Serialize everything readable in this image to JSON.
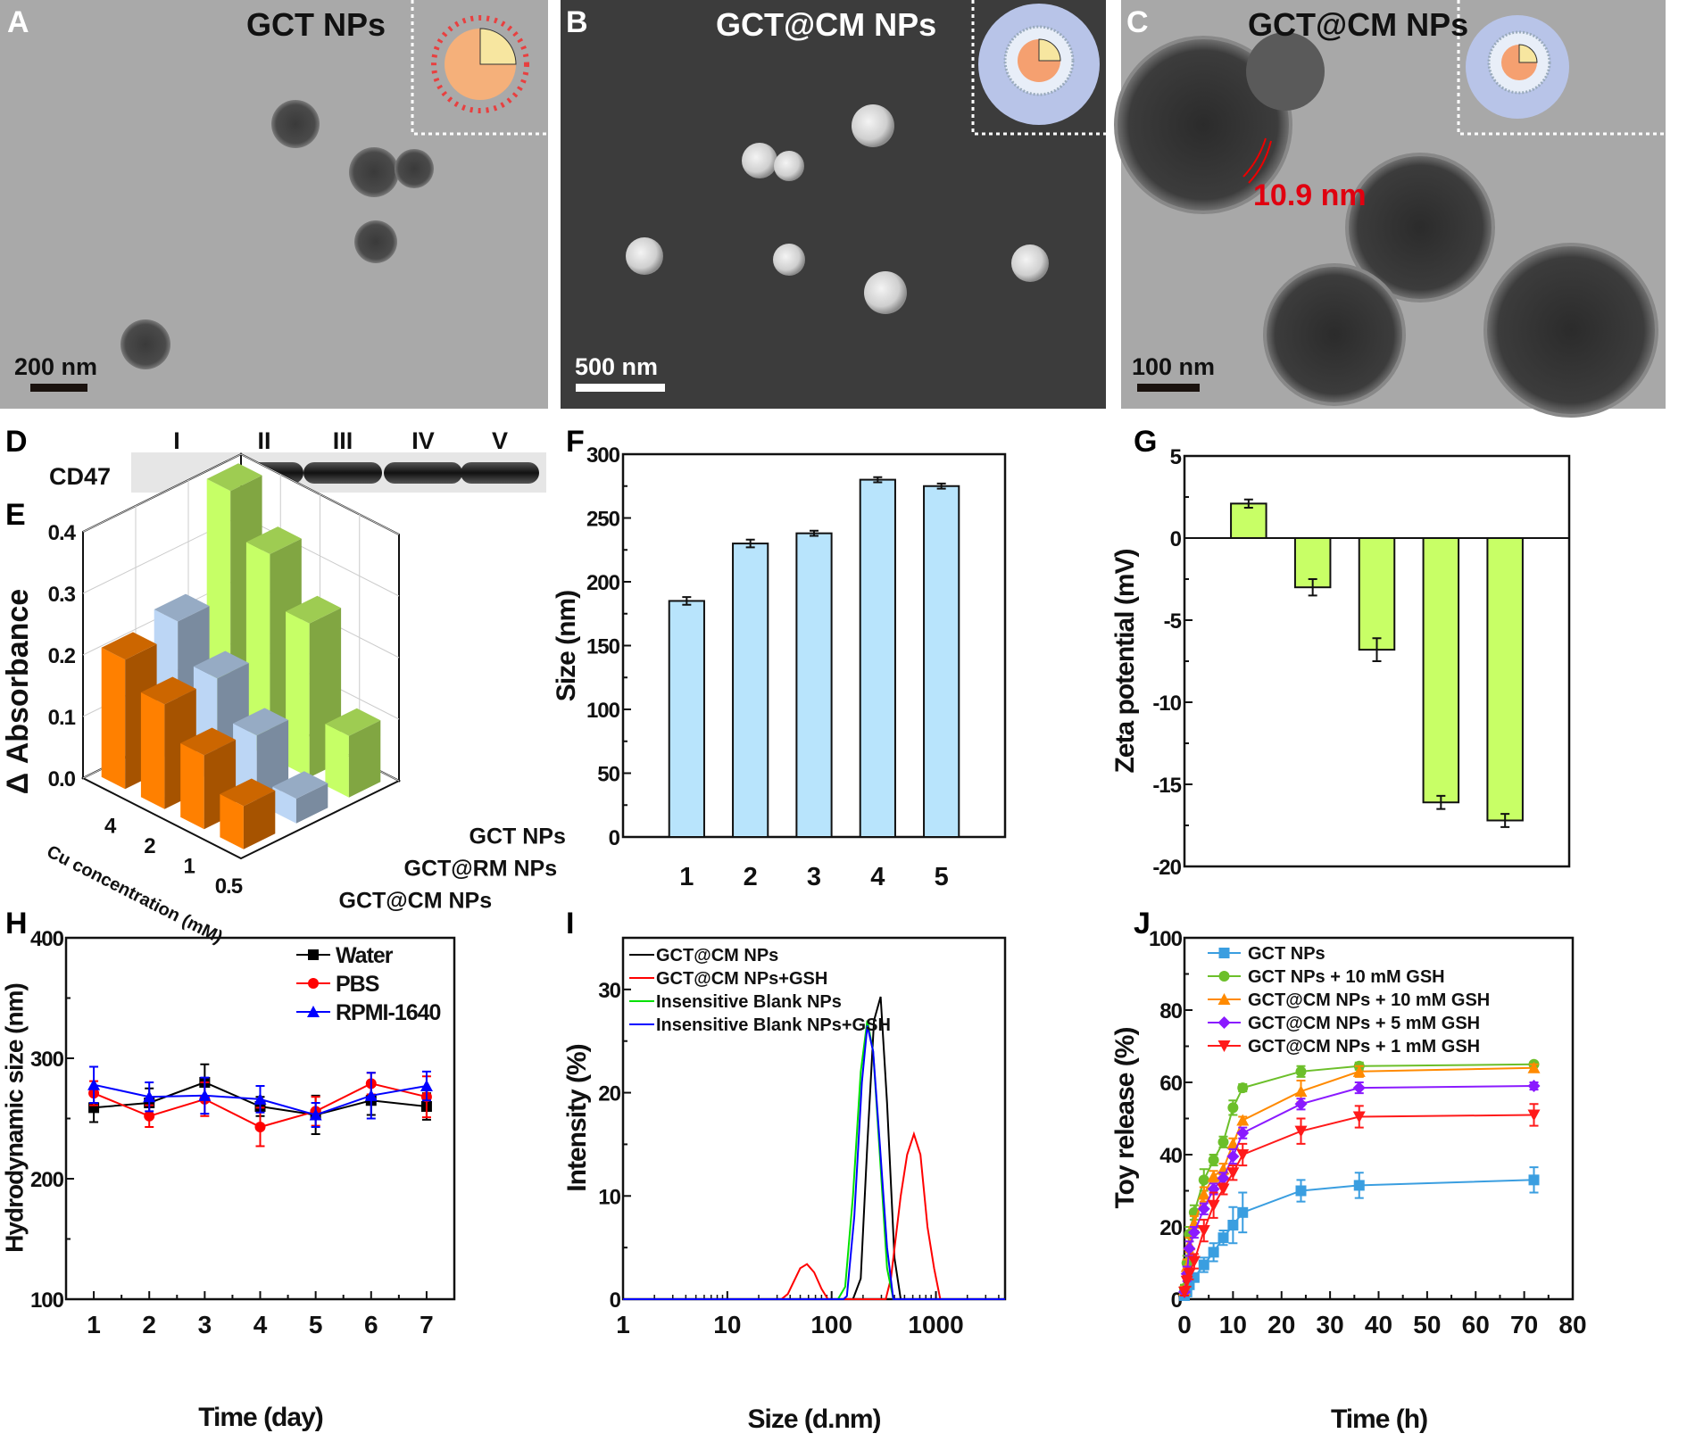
{
  "panels": {
    "A": {
      "label": "A",
      "title": "GCT NPs",
      "scale_bar": "200 nm"
    },
    "B": {
      "label": "B",
      "title": "GCT@CM NPs",
      "scale_bar": "500 nm"
    },
    "C": {
      "label": "C",
      "title": "GCT@CM NPs",
      "scale_bar": "100 nm",
      "annotation": "10.9 nm"
    },
    "D": {
      "label": "D",
      "row_label": "CD47",
      "lanes": [
        "I",
        "II",
        "III",
        "IV",
        "V"
      ],
      "band_present": [
        false,
        true,
        true,
        true,
        true
      ]
    },
    "E": {
      "label": "E"
    },
    "F": {
      "label": "F"
    },
    "G": {
      "label": "G"
    },
    "H": {
      "label": "H"
    },
    "I": {
      "label": "I"
    },
    "J": {
      "label": "J"
    }
  },
  "colors": {
    "orange": "#ff8000",
    "light_blue": "#bcd6f5",
    "lime": "#c6ff66",
    "bar_blue": "#b8e4fc",
    "bar_green": "#c8ff66"
  },
  "chart_data": [
    {
      "panel": "E",
      "type": "bar3d",
      "ylabel": "Δ Absorbance",
      "xlabel": "Cu concentration (mM)",
      "categories": [
        "4",
        "2",
        "1",
        "0.5"
      ],
      "yticks": [
        "0.0",
        "0.1",
        "0.2",
        "0.3",
        "0.4"
      ],
      "ylim": [
        0,
        0.4
      ],
      "series": [
        {
          "name": "GCT@CM NPs",
          "color": "#ff8000",
          "values": [
            0.21,
            0.17,
            0.12,
            0.07
          ]
        },
        {
          "name": "GCT@RM NPs",
          "color": "#bcd6f5",
          "values": [
            0.23,
            0.17,
            0.11,
            0.04
          ]
        },
        {
          "name": "GCT NPs",
          "color": "#c6ff66",
          "values": [
            0.4,
            0.33,
            0.25,
            0.1
          ]
        }
      ]
    },
    {
      "panel": "F",
      "type": "bar",
      "ylabel": "Size (nm)",
      "xlabel": "",
      "categories": [
        "1",
        "2",
        "3",
        "4",
        "5"
      ],
      "values": [
        185,
        230,
        238,
        280,
        275
      ],
      "errors": [
        3,
        3,
        2,
        2,
        2
      ],
      "ylim": [
        0,
        300
      ],
      "yticks": [
        0,
        50,
        100,
        150,
        200,
        250,
        300
      ],
      "color": "#b8e4fc"
    },
    {
      "panel": "G",
      "type": "bar",
      "ylabel": "Zeta potential (mV)",
      "xlabel": "",
      "categories": [
        "",
        "",
        "",
        "",
        ""
      ],
      "values": [
        2.1,
        -3.0,
        -6.8,
        -16.1,
        -17.2
      ],
      "errors": [
        0.25,
        0.5,
        0.7,
        0.4,
        0.4
      ],
      "ylim": [
        -20,
        5
      ],
      "yticks": [
        5,
        0,
        -5,
        -10,
        -15,
        -20
      ],
      "color": "#c8ff66"
    },
    {
      "panel": "H",
      "type": "line",
      "ylabel": "Hydrodynamic size (nm)",
      "xlabel": "Time (day)",
      "x": [
        1,
        2,
        3,
        4,
        5,
        6,
        7
      ],
      "xlim": [
        0.5,
        7.5
      ],
      "ylim": [
        100,
        400
      ],
      "xticks": [
        1,
        2,
        3,
        4,
        5,
        6,
        7
      ],
      "yticks": [
        100,
        200,
        300,
        400
      ],
      "legend": "top-right",
      "series": [
        {
          "name": "Water",
          "color": "#000000",
          "marker": "square",
          "values": [
            259,
            263,
            280,
            260,
            253,
            265,
            260
          ],
          "errors": [
            12,
            12,
            15,
            8,
            16,
            12,
            11
          ]
        },
        {
          "name": "PBS",
          "color": "#ff0000",
          "marker": "circle",
          "values": [
            271,
            252,
            266,
            243,
            256,
            279,
            268
          ],
          "errors": [
            10,
            9,
            14,
            16,
            12,
            9,
            17
          ]
        },
        {
          "name": "RPMI-1640",
          "color": "#0000ff",
          "marker": "triangle",
          "values": [
            278,
            268,
            269,
            266,
            253,
            269,
            277
          ],
          "errors": [
            15,
            12,
            15,
            11,
            10,
            19,
            12
          ]
        }
      ]
    },
    {
      "panel": "I",
      "type": "line",
      "ylabel": "Intensity (%)",
      "xlabel": "Size (d.nm)",
      "xscale": "log",
      "xlim": [
        1,
        4600
      ],
      "ylim": [
        0,
        35
      ],
      "xticks": [
        1,
        10,
        100,
        1000
      ],
      "yticks": [
        0,
        10,
        20,
        30
      ],
      "legend": "top-left",
      "series": [
        {
          "name": "GCT@CM NPs",
          "color": "#000000",
          "points": [
            [
              1,
              0
            ],
            [
              160,
              0
            ],
            [
              190,
              2
            ],
            [
              220,
              15
            ],
            [
              255,
              27
            ],
            [
              295,
              29.3
            ],
            [
              340,
              19
            ],
            [
              400,
              4
            ],
            [
              460,
              0
            ],
            [
              4600,
              0
            ]
          ]
        },
        {
          "name": "GCT@CM NPs+GSH",
          "color": "#ff0000",
          "points": [
            [
              1,
              0
            ],
            [
              33,
              0
            ],
            [
              38,
              0.5
            ],
            [
              50,
              3
            ],
            [
              58,
              3.4
            ],
            [
              68,
              2.6
            ],
            [
              80,
              1
            ],
            [
              92,
              0
            ],
            [
              330,
              0
            ],
            [
              370,
              2
            ],
            [
              460,
              10
            ],
            [
              530,
              14
            ],
            [
              615,
              16
            ],
            [
              710,
              14
            ],
            [
              830,
              7
            ],
            [
              960,
              3
            ],
            [
              1100,
              0
            ],
            [
              4600,
              0
            ]
          ]
        },
        {
          "name": "Insensitive Blank NPs",
          "color": "#00e000",
          "points": [
            [
              1,
              0
            ],
            [
              115,
              0
            ],
            [
              135,
              1.2
            ],
            [
              160,
              10
            ],
            [
              190,
              22
            ],
            [
              220,
              27
            ],
            [
              250,
              24
            ],
            [
              290,
              14
            ],
            [
              340,
              3
            ],
            [
              390,
              0
            ],
            [
              4600,
              0
            ]
          ]
        },
        {
          "name": "Insensitive Blank NPs+GSH",
          "color": "#0000ff",
          "points": [
            [
              1,
              0
            ],
            [
              130,
              0
            ],
            [
              140,
              0.3
            ],
            [
              165,
              8
            ],
            [
              195,
              21
            ],
            [
              220,
              26.5
            ],
            [
              250,
              24
            ],
            [
              290,
              15
            ],
            [
              340,
              5
            ],
            [
              390,
              0
            ],
            [
              4600,
              0
            ]
          ]
        }
      ]
    },
    {
      "panel": "J",
      "type": "line",
      "ylabel": "Toy release (%)",
      "xlabel": "Time (h)",
      "x": [
        0,
        0.5,
        1,
        2,
        4,
        6,
        8,
        10,
        12,
        24,
        36,
        72
      ],
      "xlim": [
        0,
        80
      ],
      "ylim": [
        0,
        100
      ],
      "xticks": [
        0,
        10,
        20,
        30,
        40,
        50,
        60,
        70,
        80
      ],
      "yticks": [
        0,
        20,
        40,
        60,
        80,
        100
      ],
      "legend": "top-left",
      "series": [
        {
          "name": "GCT NPs",
          "color": "#3a9ee0",
          "marker": "square",
          "values": [
            1,
            2,
            4,
            6,
            9.5,
            13,
            17,
            20.5,
            24,
            30,
            31.5,
            33
          ],
          "errors": [
            1,
            1,
            1,
            1,
            2,
            2.5,
            2,
            5,
            5.5,
            3,
            3.5,
            3.5
          ]
        },
        {
          "name": "GCT NPs + 10 mM GSH",
          "color": "#6cbf2a",
          "marker": "circle",
          "values": [
            3,
            10,
            18,
            24,
            33,
            38.5,
            43.5,
            53,
            58.5,
            63,
            64.5,
            65
          ],
          "errors": [
            1,
            2,
            2,
            2,
            3,
            1.5,
            1.5,
            2,
            1,
            1.5,
            1,
            0.5
          ]
        },
        {
          "name": "GCT@CM NPs + 10 mM GSH",
          "color": "#ff8a00",
          "marker": "triangle",
          "values": [
            2.5,
            9,
            15,
            21,
            29,
            34,
            36,
            43,
            49.5,
            57.5,
            63,
            64
          ],
          "errors": [
            1,
            2,
            2,
            2,
            2,
            1.5,
            1.5,
            1.5,
            1,
            3,
            1.5,
            1
          ]
        },
        {
          "name": "GCT@CM NPs + 5 mM GSH",
          "color": "#8a1aff",
          "marker": "diamond",
          "values": [
            2,
            7,
            14,
            18.5,
            25,
            30.5,
            33.5,
            39.5,
            46,
            54,
            58.5,
            59
          ],
          "errors": [
            1,
            2,
            2,
            1.5,
            1.5,
            1.5,
            1.5,
            2,
            1.5,
            1.5,
            1.5,
            1
          ]
        },
        {
          "name": "GCT@CM NPs + 1 mM GSH",
          "color": "#ff1a1a",
          "marker": "triangle-down",
          "values": [
            2,
            5,
            7,
            10.5,
            19,
            26,
            30.5,
            35,
            40,
            46.5,
            50.5,
            51
          ],
          "errors": [
            1,
            1.5,
            1.5,
            2,
            3,
            3.5,
            1.5,
            2,
            3,
            3.5,
            3,
            3
          ]
        }
      ]
    }
  ]
}
